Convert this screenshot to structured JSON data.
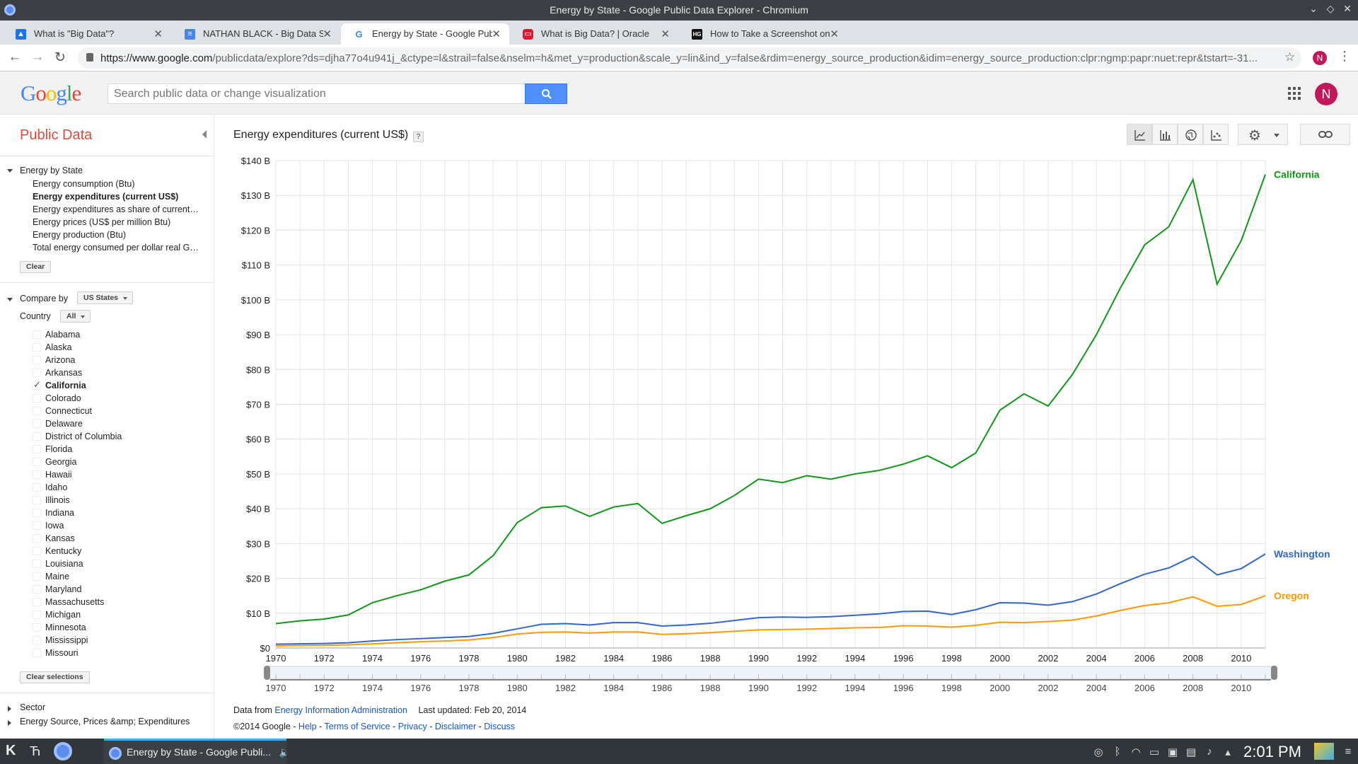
{
  "window": {
    "title": "Energy by State - Google Public Data Explorer - Chromium"
  },
  "tabs": [
    {
      "label": "What is \"Big Data\"?",
      "icon": "user-badge-icon",
      "color": "#1a73e8"
    },
    {
      "label": "NATHAN BLACK - Big Data Stu",
      "icon": "docs-icon",
      "color": "#4285f4"
    },
    {
      "label": "Energy by State - Google Pub",
      "icon": "google-g-icon",
      "color": "#4285f4",
      "active": true
    },
    {
      "label": "What is Big Data? | Oracle",
      "icon": "oracle-icon",
      "color": "#e8102c"
    },
    {
      "label": "How to Take a Screenshot on",
      "icon": "htg-icon",
      "color": "#111111"
    }
  ],
  "address": {
    "url_host": "https://www.google.com",
    "url_rest": "/publicdata/explore?ds=djha77o4u941j_&ctype=l&strail=false&nselm=h&met_y=production&scale_y=lin&ind_y=false&rdim=energy_source_production&idim=energy_source_production:clpr:ngmp:papr:nuet:repr&tstart=-31...",
    "profile_initial": "N"
  },
  "header": {
    "search_placeholder": "Search public data or change visualization",
    "account_initial": "N",
    "logo": "Google"
  },
  "sidebar": {
    "title": "Public Data",
    "dataset": "Energy by State",
    "metrics": [
      {
        "label": "Energy consumption (Btu)",
        "selected": false
      },
      {
        "label": "Energy expenditures (current US$)",
        "selected": true
      },
      {
        "label": "Energy expenditures as share of current-dollar GDP",
        "selected": false
      },
      {
        "label": "Energy prices (US$ per million Btu)",
        "selected": false
      },
      {
        "label": "Energy production (Btu)",
        "selected": false
      },
      {
        "label": "Total energy consumed per dollar real GDP",
        "selected": false
      }
    ],
    "clear_label": "Clear",
    "compare_by_label": "Compare by",
    "compare_by_value": "US States",
    "country_label": "Country",
    "country_value": "All",
    "states": [
      {
        "name": "Alabama",
        "checked": false
      },
      {
        "name": "Alaska",
        "checked": false
      },
      {
        "name": "Arizona",
        "checked": false
      },
      {
        "name": "Arkansas",
        "checked": false
      },
      {
        "name": "California",
        "checked": true
      },
      {
        "name": "Colorado",
        "checked": false
      },
      {
        "name": "Connecticut",
        "checked": false
      },
      {
        "name": "Delaware",
        "checked": false
      },
      {
        "name": "District of Columbia",
        "checked": false
      },
      {
        "name": "Florida",
        "checked": false
      },
      {
        "name": "Georgia",
        "checked": false
      },
      {
        "name": "Hawaii",
        "checked": false
      },
      {
        "name": "Idaho",
        "checked": false
      },
      {
        "name": "Illinois",
        "checked": false
      },
      {
        "name": "Indiana",
        "checked": false
      },
      {
        "name": "Iowa",
        "checked": false
      },
      {
        "name": "Kansas",
        "checked": false
      },
      {
        "name": "Kentucky",
        "checked": false
      },
      {
        "name": "Louisiana",
        "checked": false
      },
      {
        "name": "Maine",
        "checked": false
      },
      {
        "name": "Maryland",
        "checked": false
      },
      {
        "name": "Massachusetts",
        "checked": false
      },
      {
        "name": "Michigan",
        "checked": false
      },
      {
        "name": "Minnesota",
        "checked": false
      },
      {
        "name": "Mississippi",
        "checked": false
      },
      {
        "name": "Missouri",
        "checked": false
      }
    ],
    "clear_selections_label": "Clear selections",
    "sector_label": "Sector",
    "energy_source_label": "Energy Source, Prices &amp; Expenditures"
  },
  "main": {
    "chart_title": "Energy expenditures (current US$)",
    "help_label": "?",
    "view_buttons": [
      "line-chart-icon",
      "bar-chart-icon",
      "map-globe-icon",
      "scatter-chart-icon"
    ],
    "footer": {
      "data_from_label": "Data from",
      "source": "Energy Information Administration",
      "updated": "Last updated: Feb 20, 2014",
      "copyright": "©2014 Google",
      "links": [
        "Help",
        "Terms of Service",
        "Privacy",
        "Disclaimer",
        "Discuss"
      ]
    }
  },
  "chart_data": {
    "type": "line",
    "title": "Energy expenditures (current US$)",
    "x_ticks": [
      "1970",
      "1972",
      "1974",
      "1976",
      "1978",
      "1980",
      "1982",
      "1984",
      "1986",
      "1988",
      "1990",
      "1992",
      "1994",
      "1996",
      "1998",
      "2000",
      "2002",
      "2004",
      "2006",
      "2008",
      "2010"
    ],
    "y_ticks": [
      "$0",
      "$10 B",
      "$20 B",
      "$30 B",
      "$40 B",
      "$50 B",
      "$60 B",
      "$70 B",
      "$80 B",
      "$90 B",
      "$100 B",
      "$110 B",
      "$120 B",
      "$130 B",
      "$140 B"
    ],
    "xlim": [
      1970,
      2011
    ],
    "ylim": [
      0,
      140
    ],
    "grid": true,
    "x": [
      1970,
      1971,
      1972,
      1973,
      1974,
      1975,
      1976,
      1977,
      1978,
      1979,
      1980,
      1981,
      1982,
      1983,
      1984,
      1985,
      1986,
      1987,
      1988,
      1989,
      1990,
      1991,
      1992,
      1993,
      1994,
      1995,
      1996,
      1997,
      1998,
      1999,
      2000,
      2001,
      2002,
      2003,
      2004,
      2005,
      2006,
      2007,
      2008,
      2009,
      2010,
      2011
    ],
    "series": [
      {
        "name": "California",
        "color": "#109618",
        "values": [
          7,
          7.8,
          8.3,
          9.5,
          13,
          15,
          16.7,
          19.2,
          21,
          26.5,
          36,
          40.3,
          40.8,
          37.8,
          40.5,
          41.5,
          35.8,
          38,
          40,
          43.8,
          48.5,
          47.5,
          49.5,
          48.5,
          50,
          51,
          52.8,
          55.2,
          51.8,
          56,
          68.3,
          73,
          69.5,
          78.5,
          90,
          103.5,
          115.8,
          121,
          134.5,
          104.5,
          117,
          136
        ]
      },
      {
        "name": "Washington",
        "color": "#3366cc",
        "values": [
          1.1,
          1.2,
          1.3,
          1.5,
          2,
          2.4,
          2.7,
          3,
          3.3,
          4.2,
          5.5,
          6.8,
          7,
          6.6,
          7.3,
          7.3,
          6.3,
          6.6,
          7.1,
          7.9,
          8.7,
          8.9,
          8.8,
          9,
          9.4,
          9.8,
          10.5,
          10.6,
          9.6,
          11,
          13,
          12.9,
          12.3,
          13.3,
          15.5,
          18.5,
          21.2,
          23,
          26.3,
          21,
          22.8,
          27
        ]
      },
      {
        "name": "Oregon",
        "color": "#ff9900",
        "values": [
          0.6,
          0.7,
          0.8,
          0.9,
          1.2,
          1.5,
          1.8,
          2,
          2.3,
          3,
          4,
          4.5,
          4.6,
          4.3,
          4.6,
          4.6,
          3.9,
          4.1,
          4.4,
          4.8,
          5.2,
          5.3,
          5.4,
          5.6,
          5.8,
          5.9,
          6.4,
          6.3,
          6,
          6.5,
          7.4,
          7.3,
          7.6,
          8,
          9.2,
          10.8,
          12.2,
          13,
          14.7,
          12,
          12.5,
          15
        ]
      }
    ]
  },
  "taskbar": {
    "task_label": "Energy by State - Google Publi...",
    "clock": "2:01 PM"
  }
}
